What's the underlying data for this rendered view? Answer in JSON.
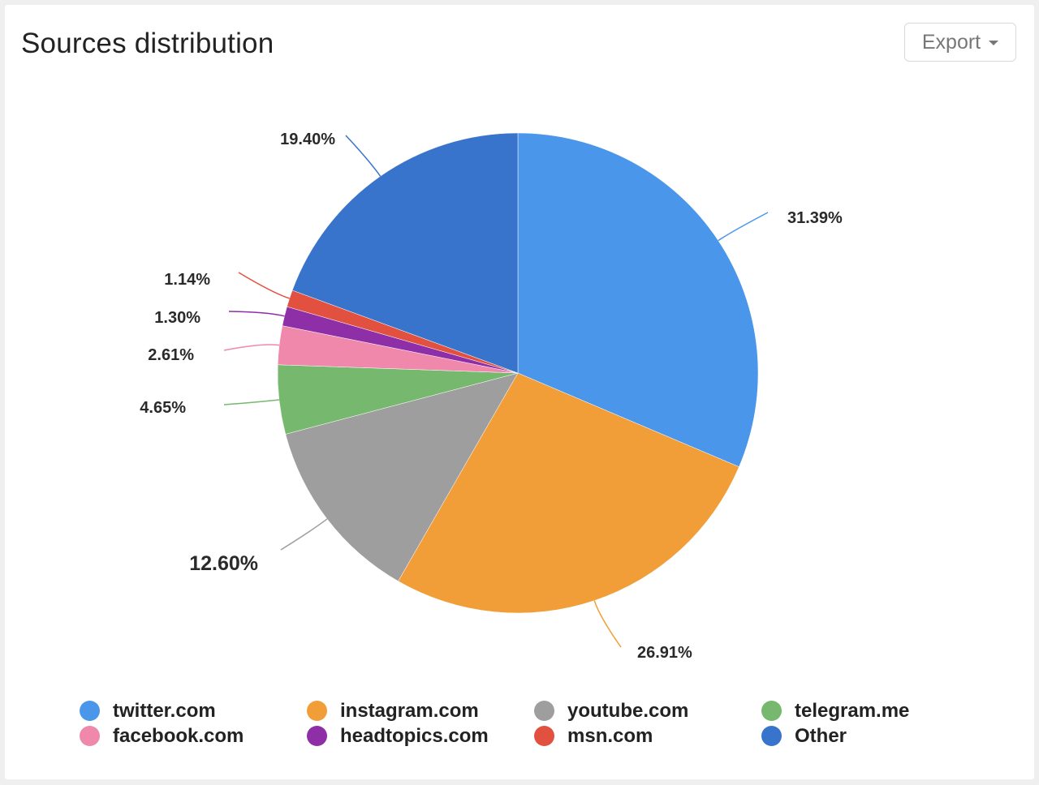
{
  "header": {
    "title": "Sources distribution",
    "export_label": "Export",
    "export_icon": "caret-down-icon"
  },
  "chart_data": {
    "type": "pie",
    "title": "Sources distribution",
    "categories": [
      "twitter.com",
      "instagram.com",
      "youtube.com",
      "telegram.me",
      "facebook.com",
      "headtopics.com",
      "msn.com",
      "Other"
    ],
    "values": [
      31.39,
      26.91,
      12.6,
      4.65,
      2.61,
      1.3,
      1.14,
      19.4
    ],
    "labels": [
      "31.39%",
      "26.91%",
      "12.60%",
      "4.65%",
      "2.61%",
      "1.30%",
      "1.14%",
      "19.40%"
    ],
    "colors": [
      "#4a96ea",
      "#f19e38",
      "#9e9e9e",
      "#77b86f",
      "#ef88ab",
      "#8e2fa8",
      "#e2513f",
      "#3874cb"
    ],
    "start_angle": "12 o'clock, clockwise",
    "legend_position": "bottom"
  },
  "legend": {
    "items": [
      {
        "label": "twitter.com",
        "color": "#4a96ea"
      },
      {
        "label": "instagram.com",
        "color": "#f19e38"
      },
      {
        "label": "youtube.com",
        "color": "#9e9e9e"
      },
      {
        "label": "telegram.me",
        "color": "#77b86f"
      },
      {
        "label": "facebook.com",
        "color": "#ef88ab"
      },
      {
        "label": "headtopics.com",
        "color": "#8e2fa8"
      },
      {
        "label": "msn.com",
        "color": "#e2513f"
      },
      {
        "label": "Other",
        "color": "#3874cb"
      }
    ]
  }
}
